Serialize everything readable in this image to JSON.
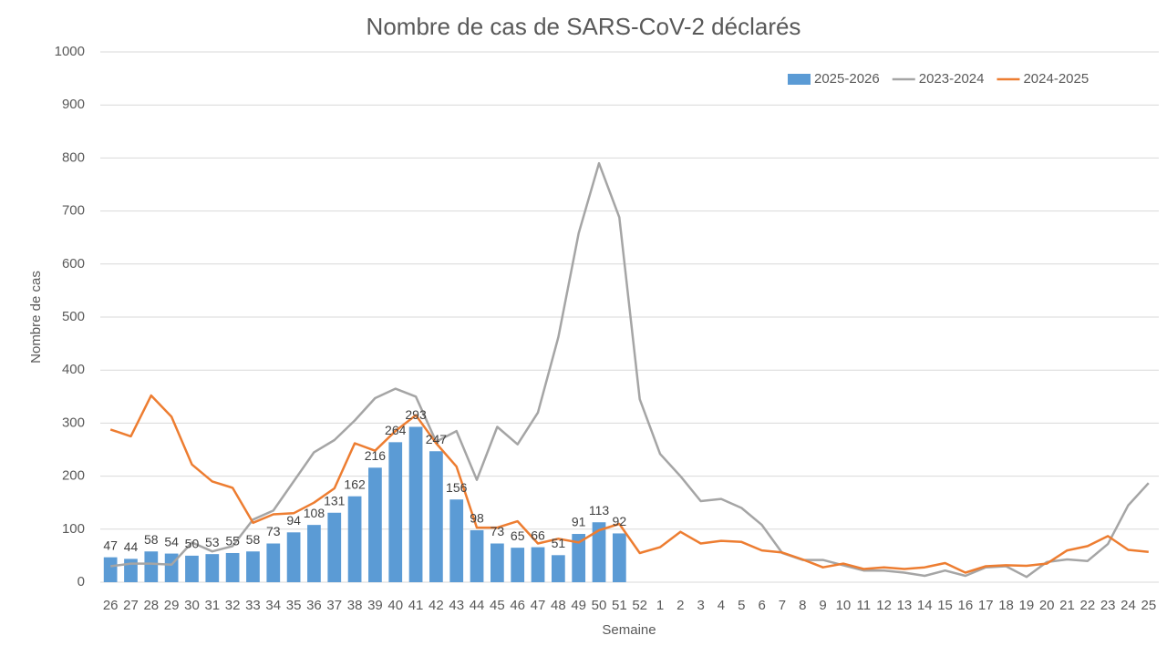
{
  "chart_data": {
    "type": "bar-line",
    "title": "Nombre de cas de SARS-CoV-2 déclarés",
    "x_label": "Semaine",
    "y_label": "Nombre de cas",
    "categories": [
      "26",
      "27",
      "28",
      "29",
      "30",
      "31",
      "32",
      "33",
      "34",
      "35",
      "36",
      "37",
      "38",
      "39",
      "40",
      "41",
      "42",
      "43",
      "44",
      "45",
      "46",
      "47",
      "48",
      "49",
      "50",
      "51",
      "52",
      "1",
      "2",
      "3",
      "4",
      "5",
      "6",
      "7",
      "8",
      "9",
      "10",
      "11",
      "12",
      "13",
      "14",
      "15",
      "16",
      "17",
      "18",
      "19",
      "20",
      "21",
      "22",
      "23",
      "24",
      "25"
    ],
    "series": [
      {
        "name": "2025-2026",
        "type": "bar",
        "color": "#5b9bd5",
        "values": [
          47,
          44,
          58,
          54,
          50,
          53,
          55,
          58,
          73,
          94,
          108,
          131,
          162,
          216,
          264,
          293,
          247,
          156,
          98,
          73,
          65,
          66,
          51,
          91,
          113,
          92,
          null,
          null,
          null,
          null,
          null,
          null,
          null,
          null,
          null,
          null,
          null,
          null,
          null,
          null,
          null,
          null,
          null,
          null,
          null,
          null,
          null,
          null,
          null,
          null,
          null,
          null
        ]
      },
      {
        "name": "2023-2024",
        "type": "line",
        "color": "#a5a5a5",
        "values": [
          30,
          35,
          35,
          33,
          75,
          58,
          68,
          118,
          135,
          190,
          245,
          268,
          305,
          347,
          365,
          350,
          265,
          285,
          193,
          293,
          260,
          320,
          462,
          658,
          790,
          688,
          345,
          242,
          200,
          153,
          157,
          140,
          108,
          55,
          42,
          42,
          32,
          22,
          22,
          18,
          12,
          22,
          12,
          28,
          30,
          10,
          38,
          43,
          40,
          72,
          145,
          187
        ]
      },
      {
        "name": "2024-2025",
        "type": "line",
        "color": "#ed7d31",
        "values": [
          288,
          275,
          352,
          312,
          222,
          190,
          178,
          112,
          128,
          130,
          150,
          177,
          262,
          248,
          285,
          315,
          262,
          218,
          103,
          103,
          115,
          73,
          82,
          75,
          98,
          110,
          55,
          66,
          95,
          73,
          78,
          76,
          60,
          56,
          43,
          28,
          35,
          25,
          28,
          25,
          28,
          36,
          18,
          30,
          32,
          31,
          35,
          60,
          68,
          87,
          61,
          57
        ]
      }
    ],
    "ylim": [
      0,
      1000
    ],
    "yticks": [
      0,
      100,
      200,
      300,
      400,
      500,
      600,
      700,
      800,
      900,
      1000
    ],
    "grid": true,
    "legend": "top-right",
    "data_labels": true
  }
}
